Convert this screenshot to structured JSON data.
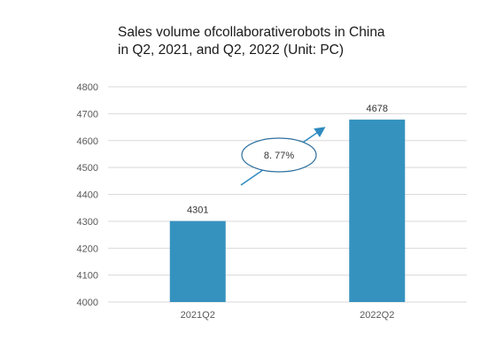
{
  "chart_data": {
    "type": "bar",
    "title_lines": [
      "Sales volume ofcollaborativerobots in China",
      "in Q2, 2021, and Q2, 2022 (Unit: PC)"
    ],
    "categories": [
      "2021Q2",
      "2022Q2"
    ],
    "values": [
      4301,
      4678
    ],
    "data_labels": [
      "4301",
      "4678"
    ],
    "ylim": [
      4000,
      4800
    ],
    "yticks": [
      4000,
      4100,
      4200,
      4300,
      4400,
      4500,
      4600,
      4700,
      4800
    ],
    "ytick_labels": [
      "4000",
      "4100",
      "4200",
      "4300",
      "4400",
      "4500",
      "4600",
      "4700",
      "4800"
    ],
    "grid": true,
    "annotation": "8. 77%",
    "colors": {
      "bar": "#3592bf",
      "grid": "#d9d9d9",
      "arrow": "#2e8bc0",
      "ellipse": "#2e6f9e"
    }
  }
}
